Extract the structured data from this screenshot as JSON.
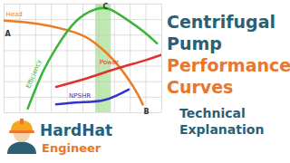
{
  "chart_data": {
    "type": "line",
    "title": "Centrifugal Pump Performance Curves",
    "subtitle": "Technical Explanation",
    "xlim": [
      0,
      10
    ],
    "ylim": [
      0,
      10.5
    ],
    "xticks": [
      0,
      1,
      2,
      3,
      4,
      5,
      6,
      7,
      8,
      9,
      10
    ],
    "yticks": [
      0,
      1.5,
      3,
      4.5,
      6,
      7.5,
      9,
      10.5
    ],
    "grid": true,
    "tick_labels": false,
    "bep_band": [
      5.8,
      6.8
    ],
    "series": [
      {
        "name": "Head",
        "color": "#f07b1f",
        "x": [
          0,
          2.1,
          4.5,
          5.8,
          7,
          8.2,
          8.8
        ],
        "values": [
          8.9,
          8.6,
          7.75,
          6.7,
          5,
          2.5,
          0.8
        ]
      },
      {
        "name": "Efficiency",
        "color": "#3cb43c",
        "x": [
          1.5,
          2.4,
          3.3,
          4.5,
          5.8,
          6.7,
          7.6,
          8.8,
          9.7
        ],
        "values": [
          0.4,
          3.75,
          6.25,
          8.75,
          10,
          10,
          9.2,
          7.9,
          6.7
        ]
      },
      {
        "name": "Power",
        "color": "#e03030",
        "x": [
          3.3,
          5.2,
          7,
          8.8,
          10
        ],
        "values": [
          2.5,
          3.3,
          4.2,
          5,
          5.6
        ]
      },
      {
        "name": "NPSHR",
        "color": "#3434c8",
        "x": [
          3.3,
          4.8,
          6.4,
          7.9
        ],
        "values": [
          0.8,
          1,
          1.25,
          2.25
        ]
      }
    ],
    "annotations": [
      {
        "text": "A",
        "x": 0,
        "y": 7.6
      },
      {
        "text": "B",
        "x": 8.8,
        "y": 0.1
      },
      {
        "text": "C",
        "x": 6.2,
        "y": 10.25
      }
    ]
  },
  "logo": "HardHat Engineer"
}
